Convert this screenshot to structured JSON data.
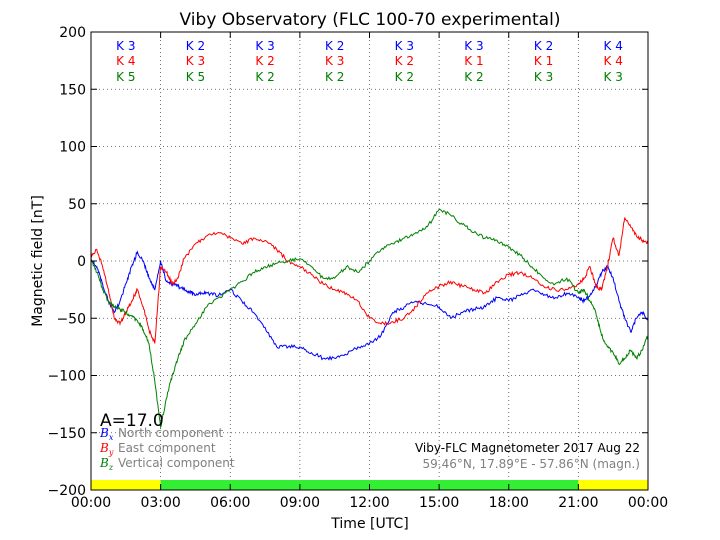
{
  "chart_data": {
    "type": "line",
    "title": "Viby Observatory (FLC 100-70 experimental)",
    "xlabel": "Time [UTC]",
    "ylabel": "Magnetic field [nT]",
    "xlim": [
      0,
      24
    ],
    "ylim": [
      -200,
      200
    ],
    "grid": true,
    "x_tick_values": [
      0,
      3,
      6,
      9,
      12,
      15,
      18,
      21,
      24
    ],
    "x_tick_labels": [
      "00:00",
      "03:00",
      "06:00",
      "09:00",
      "12:00",
      "15:00",
      "18:00",
      "21:00",
      "00:00"
    ],
    "y_tick_values": [
      -200,
      -150,
      -100,
      -50,
      0,
      50,
      100,
      150,
      200
    ],
    "y_tick_labels": [
      "−200",
      "−150",
      "−100",
      "−50",
      "0",
      "50",
      "100",
      "150",
      "200"
    ],
    "annotation_amplitude": "A=17.0",
    "footer_line1": "Viby-FLC Magnetometer 2017 Aug 22",
    "footer_line2": "59.46°N, 17.89°E - 57.86°N (magn.)",
    "series": [
      {
        "name": "North component",
        "symbol": "B",
        "subscript": "x",
        "color": "#0000ff",
        "x": [
          0,
          0.25,
          0.5,
          0.75,
          1.0,
          1.25,
          1.5,
          1.75,
          2.0,
          2.25,
          2.5,
          2.75,
          3.0,
          3.25,
          3.5,
          3.75,
          4.0,
          4.25,
          4.5,
          4.75,
          5.0,
          5.5,
          6.0,
          6.5,
          7.0,
          7.5,
          8.0,
          8.5,
          9.0,
          9.5,
          10.0,
          10.5,
          11.0,
          11.5,
          12.0,
          12.5,
          13.0,
          13.5,
          14.0,
          14.5,
          15.0,
          15.5,
          16.0,
          16.5,
          17.0,
          17.5,
          18.0,
          18.5,
          19.0,
          19.5,
          20.0,
          20.5,
          21.0,
          21.25,
          21.5,
          21.75,
          22.0,
          22.25,
          22.5,
          22.75,
          23.0,
          23.25,
          23.5,
          23.75,
          24.0
        ],
        "y": [
          0,
          -5,
          -20,
          -35,
          -45,
          -35,
          -20,
          -5,
          8,
          0,
          -15,
          -25,
          0,
          -18,
          -20,
          -22,
          -25,
          -27,
          -30,
          -28,
          -28,
          -30,
          -25,
          -35,
          -45,
          -58,
          -75,
          -75,
          -75,
          -80,
          -85,
          -85,
          -82,
          -75,
          -72,
          -65,
          -45,
          -40,
          -35,
          -38,
          -40,
          -50,
          -45,
          -42,
          -40,
          -32,
          -35,
          -30,
          -25,
          -30,
          -32,
          -28,
          -32,
          -35,
          -30,
          -22,
          -10,
          -5,
          -15,
          -35,
          -50,
          -62,
          -50,
          -45,
          -52
        ]
      },
      {
        "name": "East component",
        "symbol": "B",
        "subscript": "y",
        "color": "#ff0000",
        "x": [
          0,
          0.25,
          0.5,
          0.75,
          1.0,
          1.25,
          1.5,
          1.75,
          2.0,
          2.25,
          2.5,
          2.75,
          3.0,
          3.25,
          3.5,
          3.75,
          4.0,
          4.5,
          5.0,
          5.5,
          6.0,
          6.5,
          7.0,
          7.5,
          8.0,
          8.5,
          9.0,
          9.5,
          10.0,
          10.5,
          11.0,
          11.5,
          12.0,
          12.5,
          13.0,
          13.5,
          14.0,
          14.5,
          15.0,
          15.5,
          16.0,
          16.5,
          17.0,
          17.5,
          18.0,
          18.5,
          19.0,
          19.5,
          20.0,
          20.5,
          21.0,
          21.25,
          21.5,
          21.75,
          22.0,
          22.25,
          22.5,
          22.75,
          23.0,
          23.25,
          23.5,
          23.75,
          24.0
        ],
        "y": [
          5,
          10,
          -5,
          -25,
          -50,
          -55,
          -45,
          -35,
          -25,
          -40,
          -60,
          -72,
          -5,
          -10,
          -20,
          -15,
          2,
          15,
          22,
          25,
          20,
          15,
          20,
          18,
          10,
          0,
          -5,
          -12,
          -20,
          -25,
          -28,
          -35,
          -50,
          -55,
          -53,
          -50,
          -40,
          -28,
          -22,
          -18,
          -22,
          -25,
          -28,
          -18,
          -12,
          -10,
          -15,
          -22,
          -25,
          -25,
          -20,
          -15,
          -5,
          -22,
          -25,
          -5,
          20,
          5,
          38,
          30,
          22,
          18,
          15
        ]
      },
      {
        "name": "Vertical component",
        "symbol": "B",
        "subscript": "z",
        "color": "#008000",
        "x": [
          0,
          0.25,
          0.5,
          0.75,
          1.0,
          1.25,
          1.5,
          1.75,
          2.0,
          2.25,
          2.5,
          2.75,
          3.0,
          3.25,
          3.5,
          3.75,
          4.0,
          4.5,
          5.0,
          5.5,
          6.0,
          6.5,
          7.0,
          7.5,
          8.0,
          8.5,
          9.0,
          9.5,
          10.0,
          10.5,
          11.0,
          11.5,
          12.0,
          12.5,
          13.0,
          13.5,
          14.0,
          14.5,
          15.0,
          15.5,
          16.0,
          16.5,
          17.0,
          17.5,
          18.0,
          18.5,
          19.0,
          19.5,
          20.0,
          20.5,
          21.0,
          21.25,
          21.5,
          21.75,
          22.0,
          22.25,
          22.5,
          22.75,
          23.0,
          23.25,
          23.5,
          23.75,
          24.0
        ],
        "y": [
          2,
          -10,
          -25,
          -35,
          -40,
          -42,
          -45,
          -48,
          -52,
          -60,
          -72,
          -105,
          -145,
          -120,
          -100,
          -85,
          -70,
          -55,
          -40,
          -32,
          -25,
          -18,
          -10,
          -5,
          -2,
          0,
          2,
          -5,
          -15,
          -15,
          -5,
          -10,
          0,
          10,
          15,
          20,
          25,
          30,
          45,
          40,
          32,
          25,
          20,
          18,
          12,
          5,
          -5,
          -15,
          -20,
          -15,
          -28,
          -25,
          -35,
          -45,
          -65,
          -75,
          -80,
          -90,
          -85,
          -78,
          -85,
          -78,
          -65
        ]
      }
    ],
    "k_index_columns": [
      {
        "k_north": "K 3",
        "k_east": "K 4",
        "k_vertical": "K 5"
      },
      {
        "k_north": "K 2",
        "k_east": "K 3",
        "k_vertical": "K 5"
      },
      {
        "k_north": "K 3",
        "k_east": "K 2",
        "k_vertical": "K 2"
      },
      {
        "k_north": "K 2",
        "k_east": "K 3",
        "k_vertical": "K 2"
      },
      {
        "k_north": "K 3",
        "k_east": "K 2",
        "k_vertical": "K 2"
      },
      {
        "k_north": "K 3",
        "k_east": "K 1",
        "k_vertical": "K 2"
      },
      {
        "k_north": "K 2",
        "k_east": "K 1",
        "k_vertical": "K 3"
      },
      {
        "k_north": "K 4",
        "k_east": "K 4",
        "k_vertical": "K 3"
      }
    ],
    "daylight_bar": [
      {
        "from": 0,
        "to": 3,
        "color": "#ffff00"
      },
      {
        "from": 3,
        "to": 21,
        "color": "#33ee33"
      },
      {
        "from": 21,
        "to": 24,
        "color": "#ffff00"
      }
    ]
  }
}
